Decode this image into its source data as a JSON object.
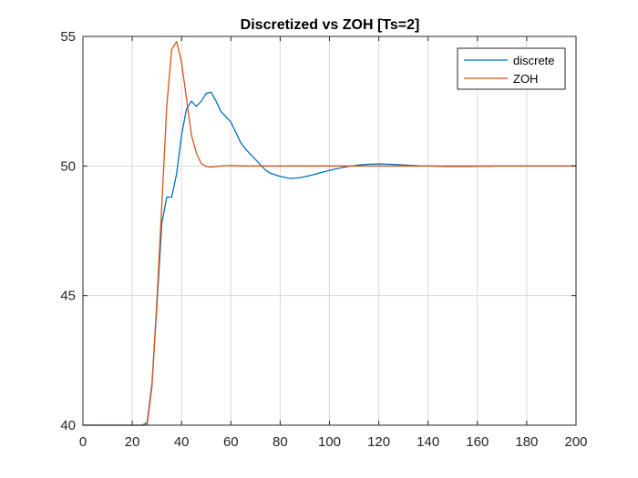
{
  "chart_data": {
    "type": "line",
    "title": "Discretized vs ZOH [Ts=2]",
    "xlabel": "",
    "ylabel": "",
    "xlim": [
      0,
      200
    ],
    "ylim": [
      40,
      55
    ],
    "xticks": [
      0,
      20,
      40,
      60,
      80,
      100,
      120,
      140,
      160,
      180,
      200
    ],
    "yticks": [
      40,
      45,
      50,
      55
    ],
    "grid": true,
    "legend_position": "top-right",
    "colors": {
      "discrete": "#0072BD",
      "zoh": "#D95319",
      "grid": "#d9d9d9",
      "axis": "#262626"
    },
    "series": [
      {
        "name": "discrete",
        "color": "#0072BD",
        "x": [
          0,
          24,
          26,
          28,
          30,
          32,
          34,
          36,
          38,
          40,
          42,
          44,
          46,
          48,
          50,
          52,
          54,
          56,
          58,
          60,
          62,
          64,
          66,
          68,
          70,
          72,
          74,
          76,
          80,
          84,
          88,
          92,
          96,
          100,
          104,
          108,
          112,
          116,
          120,
          124,
          128,
          132,
          136,
          140,
          144,
          148,
          152,
          156,
          160,
          164,
          168,
          172,
          176,
          180,
          190,
          200
        ],
        "y": [
          40,
          40,
          40.1,
          41.6,
          44.6,
          47.8,
          48.8,
          48.8,
          49.7,
          51.2,
          52.2,
          52.5,
          52.3,
          52.5,
          52.8,
          52.85,
          52.5,
          52.1,
          51.9,
          51.7,
          51.3,
          50.9,
          50.65,
          50.45,
          50.25,
          50.05,
          49.85,
          49.72,
          49.6,
          49.52,
          49.55,
          49.63,
          49.73,
          49.83,
          49.92,
          49.99,
          50.04,
          50.07,
          50.08,
          50.07,
          50.05,
          50.03,
          50.01,
          50.0,
          49.99,
          49.98,
          49.98,
          49.98,
          49.99,
          49.99,
          50.0,
          50.0,
          50.0,
          50.0,
          50.0,
          50.0
        ]
      },
      {
        "name": "ZOH",
        "color": "#D95319",
        "x": [
          0,
          26,
          28,
          30,
          32,
          34,
          36,
          38,
          40,
          42,
          44,
          46,
          48,
          50,
          52,
          54,
          56,
          60,
          64,
          70,
          80,
          100,
          140,
          200
        ],
        "y": [
          40,
          40,
          41.5,
          44.8,
          48.5,
          52.3,
          54.5,
          54.8,
          54.0,
          52.6,
          51.2,
          50.5,
          50.1,
          49.98,
          49.96,
          49.98,
          50.0,
          50.02,
          50.0,
          50.0,
          50.0,
          50.0,
          50.0,
          50.0
        ]
      }
    ]
  }
}
